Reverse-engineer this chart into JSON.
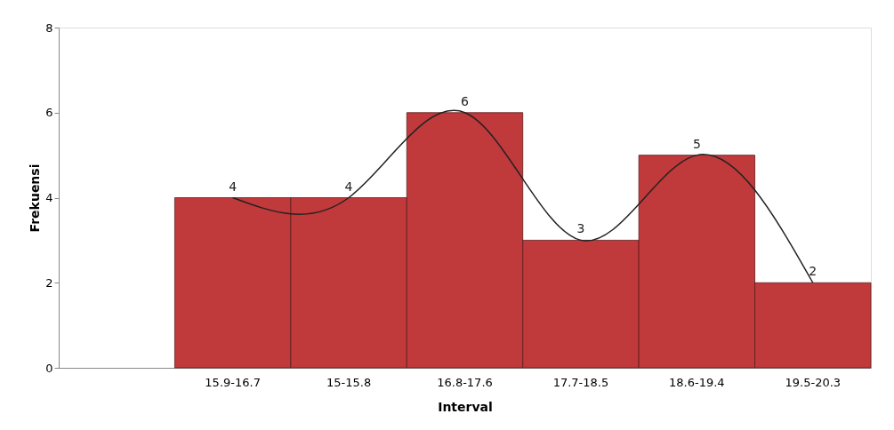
{
  "chart_data": {
    "type": "bar",
    "xlabel": "Interval",
    "ylabel": "Frekuensi",
    "categories": [
      null,
      "15.9-16.7",
      "15-15.8",
      "16.8-17.6",
      "17.7-18.5",
      "18.6-19.4",
      "19.5-20.3"
    ],
    "series": [
      {
        "color": "#c0393b",
        "values": [
          null,
          4,
          4,
          6,
          3,
          5,
          2
        ],
        "value_labels": [
          null,
          "4",
          "4",
          "6",
          "3",
          "5",
          "2"
        ]
      },
      {
        "type": "line",
        "color": "#222222",
        "values": [
          null,
          4,
          4,
          6,
          3,
          5,
          2
        ]
      }
    ],
    "ylim": [
      0,
      8
    ],
    "yticks": [
      0,
      2,
      4,
      6,
      8
    ]
  }
}
